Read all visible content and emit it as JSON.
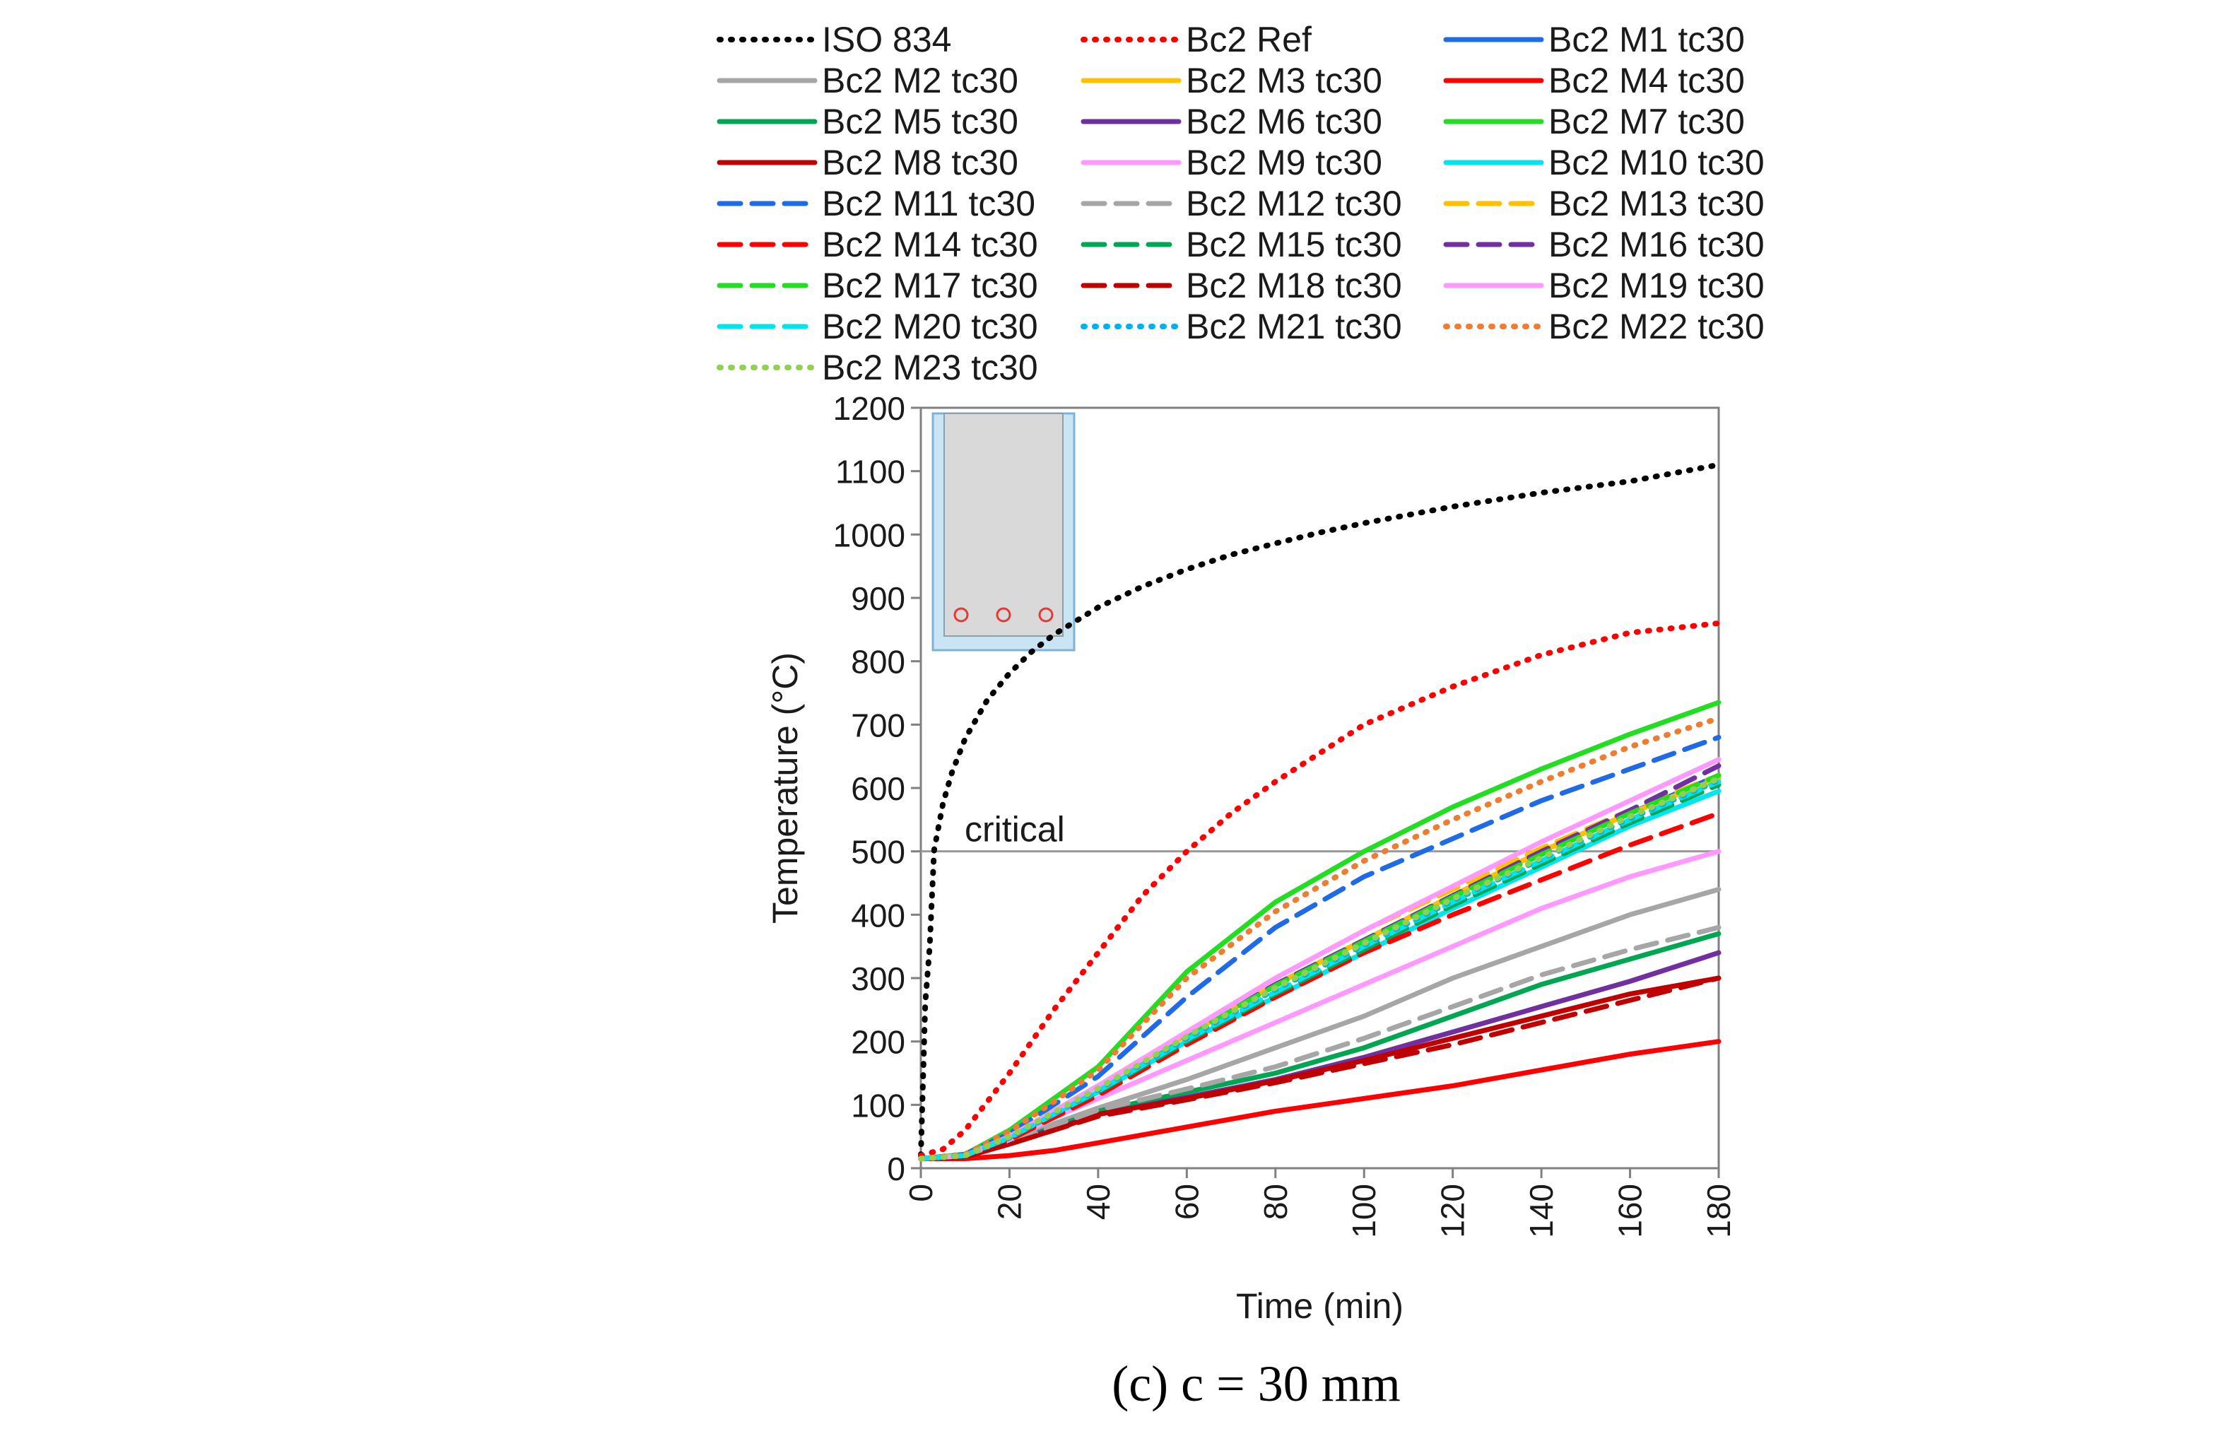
{
  "chart_data": {
    "type": "line",
    "caption": "(c) c = 30 mm",
    "xlabel": "Time (min)",
    "ylabel": "Temperature (°C)",
    "xlim": [
      0,
      180
    ],
    "ylim": [
      0,
      1200
    ],
    "xticks": [
      0,
      20,
      40,
      60,
      80,
      100,
      120,
      140,
      160,
      180
    ],
    "yticks": [
      0,
      100,
      200,
      300,
      400,
      500,
      600,
      700,
      800,
      900,
      1000,
      1100,
      1200
    ],
    "grid": false,
    "legend_position": "top",
    "annotations": [
      {
        "text": "critical",
        "type": "hline",
        "y": 500,
        "color": "#999999"
      }
    ],
    "inset": {
      "description_icon": "beam-cross-section-icon",
      "fill": "#d9d9d9",
      "border": "#7fb2d6",
      "rebar_color": "#e53935"
    },
    "series": [
      {
        "name": "ISO 834",
        "color": "#000000",
        "style": "dotted",
        "x": [
          0,
          1,
          2,
          3,
          5,
          7,
          10,
          15,
          20,
          25,
          30,
          40,
          50,
          60,
          70,
          80,
          90,
          100,
          120,
          140,
          160,
          180
        ],
        "y": [
          20,
          261,
          349,
          502,
          576,
          624,
          678,
          739,
          781,
          815,
          842,
          885,
          918,
          945,
          968,
          986,
          1003,
          1018,
          1044,
          1066,
          1084,
          1110
        ]
      },
      {
        "name": "Bc2 Ref",
        "color": "#ff0000",
        "style": "dotted",
        "x": [
          0,
          5,
          10,
          20,
          30,
          40,
          50,
          60,
          70,
          80,
          90,
          100,
          120,
          140,
          160,
          180
        ],
        "y": [
          20,
          30,
          60,
          150,
          250,
          340,
          430,
          500,
          560,
          610,
          655,
          700,
          760,
          810,
          845,
          860
        ]
      },
      {
        "name": "Bc2 M1 tc30",
        "color": "#1f6ae6",
        "style": "solid",
        "x": [
          0,
          10,
          20,
          30,
          40,
          60,
          80,
          100,
          120,
          140,
          160,
          180
        ],
        "y": [
          15,
          20,
          50,
          90,
          130,
          210,
          290,
          360,
          430,
          500,
          560,
          620
        ]
      },
      {
        "name": "Bc2 M2 tc30",
        "color": "#a6a6a6",
        "style": "solid",
        "x": [
          0,
          10,
          20,
          30,
          40,
          60,
          80,
          100,
          120,
          140,
          160,
          180
        ],
        "y": [
          15,
          18,
          40,
          70,
          95,
          140,
          190,
          240,
          300,
          350,
          400,
          440
        ]
      },
      {
        "name": "Bc2 M3 tc30",
        "color": "#ffc000",
        "style": "solid",
        "x": [
          0,
          10,
          20,
          30,
          40,
          60,
          80,
          100,
          120,
          140,
          160,
          180
        ],
        "y": [
          15,
          20,
          50,
          90,
          130,
          210,
          290,
          360,
          430,
          500,
          560,
          615
        ]
      },
      {
        "name": "Bc2 M4 tc30",
        "color": "#ff0000",
        "style": "solid",
        "x": [
          0,
          10,
          20,
          30,
          40,
          60,
          80,
          100,
          120,
          140,
          160,
          180
        ],
        "y": [
          15,
          15,
          20,
          28,
          40,
          65,
          90,
          110,
          130,
          155,
          180,
          200
        ]
      },
      {
        "name": "Bc2 M5 tc30",
        "color": "#00a651",
        "style": "solid",
        "x": [
          0,
          10,
          20,
          30,
          40,
          60,
          80,
          100,
          120,
          140,
          160,
          180
        ],
        "y": [
          15,
          18,
          40,
          65,
          90,
          120,
          150,
          190,
          240,
          290,
          330,
          370
        ]
      },
      {
        "name": "Bc2 M6 tc30",
        "color": "#7030a0",
        "style": "solid",
        "x": [
          0,
          10,
          20,
          30,
          40,
          60,
          80,
          100,
          120,
          140,
          160,
          180
        ],
        "y": [
          15,
          18,
          40,
          62,
          85,
          112,
          140,
          175,
          215,
          255,
          295,
          340
        ]
      },
      {
        "name": "Bc2 M7 tc30",
        "color": "#22dd22",
        "style": "solid",
        "x": [
          0,
          10,
          20,
          30,
          40,
          60,
          80,
          100,
          120,
          140,
          160,
          180
        ],
        "y": [
          15,
          22,
          60,
          110,
          160,
          310,
          420,
          500,
          570,
          630,
          685,
          735
        ]
      },
      {
        "name": "Bc2 M8 tc30",
        "color": "#c00000",
        "style": "solid",
        "x": [
          0,
          10,
          20,
          30,
          40,
          60,
          80,
          100,
          120,
          140,
          160,
          180
        ],
        "y": [
          15,
          18,
          38,
          60,
          85,
          110,
          138,
          170,
          205,
          240,
          275,
          300
        ]
      },
      {
        "name": "Bc2 M9 tc30",
        "color": "#ff99ff",
        "style": "solid",
        "x": [
          0,
          10,
          20,
          30,
          40,
          60,
          80,
          100,
          120,
          140,
          160,
          180
        ],
        "y": [
          15,
          20,
          45,
          80,
          110,
          170,
          230,
          290,
          350,
          410,
          460,
          500
        ]
      },
      {
        "name": "Bc2 M10 tc30",
        "color": "#00e5ee",
        "style": "solid",
        "x": [
          0,
          10,
          20,
          30,
          40,
          60,
          80,
          100,
          120,
          140,
          160,
          180
        ],
        "y": [
          15,
          20,
          48,
          85,
          120,
          200,
          270,
          340,
          410,
          475,
          540,
          595
        ]
      },
      {
        "name": "Bc2 M11 tc30",
        "color": "#1f6ae6",
        "style": "dashed",
        "x": [
          0,
          10,
          20,
          30,
          40,
          60,
          80,
          100,
          120,
          140,
          160,
          180
        ],
        "y": [
          15,
          22,
          55,
          100,
          145,
          270,
          380,
          460,
          520,
          580,
          630,
          680
        ]
      },
      {
        "name": "Bc2 M12 tc30",
        "color": "#a6a6a6",
        "style": "dashed",
        "x": [
          0,
          10,
          20,
          30,
          40,
          60,
          80,
          100,
          120,
          140,
          160,
          180
        ],
        "y": [
          15,
          18,
          40,
          67,
          92,
          125,
          160,
          205,
          255,
          305,
          345,
          380
        ]
      },
      {
        "name": "Bc2 M13 tc30",
        "color": "#ffc000",
        "style": "dashed",
        "x": [
          0,
          10,
          20,
          30,
          40,
          60,
          80,
          100,
          120,
          140,
          160,
          180
        ],
        "y": [
          15,
          20,
          50,
          90,
          130,
          215,
          300,
          375,
          440,
          505,
          565,
          620
        ]
      },
      {
        "name": "Bc2 M14 tc30",
        "color": "#ff0000",
        "style": "dashed",
        "x": [
          0,
          10,
          20,
          30,
          40,
          60,
          80,
          100,
          120,
          140,
          160,
          180
        ],
        "y": [
          15,
          20,
          45,
          80,
          115,
          195,
          270,
          340,
          400,
          455,
          510,
          560
        ]
      },
      {
        "name": "Bc2 M15 tc30",
        "color": "#00a651",
        "style": "dashed",
        "x": [
          0,
          10,
          20,
          30,
          40,
          60,
          80,
          100,
          120,
          140,
          160,
          180
        ],
        "y": [
          15,
          20,
          48,
          85,
          120,
          200,
          275,
          345,
          415,
          480,
          545,
          605
        ]
      },
      {
        "name": "Bc2 M16 tc30",
        "color": "#7030a0",
        "style": "dashed",
        "x": [
          0,
          10,
          20,
          30,
          40,
          60,
          80,
          100,
          120,
          140,
          160,
          180
        ],
        "y": [
          15,
          20,
          50,
          88,
          128,
          210,
          290,
          360,
          430,
          500,
          565,
          635
        ]
      },
      {
        "name": "Bc2 M17 tc30",
        "color": "#22dd22",
        "style": "dashed",
        "x": [
          0,
          10,
          20,
          30,
          40,
          60,
          80,
          100,
          120,
          140,
          160,
          180
        ],
        "y": [
          15,
          20,
          50,
          90,
          130,
          210,
          288,
          358,
          428,
          495,
          560,
          620
        ]
      },
      {
        "name": "Bc2 M18 tc30",
        "color": "#c00000",
        "style": "dashed",
        "x": [
          0,
          10,
          20,
          30,
          40,
          60,
          80,
          100,
          120,
          140,
          160,
          180
        ],
        "y": [
          15,
          18,
          38,
          60,
          82,
          108,
          135,
          165,
          195,
          230,
          265,
          300
        ]
      },
      {
        "name": "Bc2 M19 tc30",
        "color": "#ff99ff",
        "style": "solid",
        "x": [
          0,
          10,
          20,
          30,
          40,
          60,
          80,
          100,
          120,
          140,
          160,
          180
        ],
        "y": [
          15,
          20,
          50,
          90,
          130,
          215,
          300,
          375,
          445,
          515,
          580,
          645
        ]
      },
      {
        "name": "Bc2 M20 tc30",
        "color": "#00e5ee",
        "style": "dashed",
        "x": [
          0,
          10,
          20,
          30,
          40,
          60,
          80,
          100,
          120,
          140,
          160,
          180
        ],
        "y": [
          15,
          20,
          48,
          85,
          122,
          203,
          278,
          350,
          420,
          485,
          550,
          610
        ]
      },
      {
        "name": "Bc2 M21 tc30",
        "color": "#00b0f0",
        "style": "dotted",
        "x": [
          0,
          10,
          20,
          30,
          40,
          60,
          80,
          100,
          120,
          140,
          160,
          180
        ],
        "y": [
          15,
          20,
          48,
          86,
          124,
          205,
          282,
          352,
          422,
          488,
          552,
          612
        ]
      },
      {
        "name": "Bc2 M22 tc30",
        "color": "#ed7d31",
        "style": "dotted",
        "x": [
          0,
          10,
          20,
          30,
          40,
          60,
          80,
          100,
          120,
          140,
          160,
          180
        ],
        "y": [
          15,
          22,
          58,
          105,
          155,
          300,
          405,
          485,
          550,
          610,
          665,
          710
        ]
      },
      {
        "name": "Bc2 M23 tc30",
        "color": "#92d050",
        "style": "dotted",
        "x": [
          0,
          10,
          20,
          30,
          40,
          60,
          80,
          100,
          120,
          140,
          160,
          180
        ],
        "y": [
          15,
          20,
          50,
          88,
          126,
          208,
          285,
          355,
          425,
          490,
          555,
          615
        ]
      }
    ]
  }
}
